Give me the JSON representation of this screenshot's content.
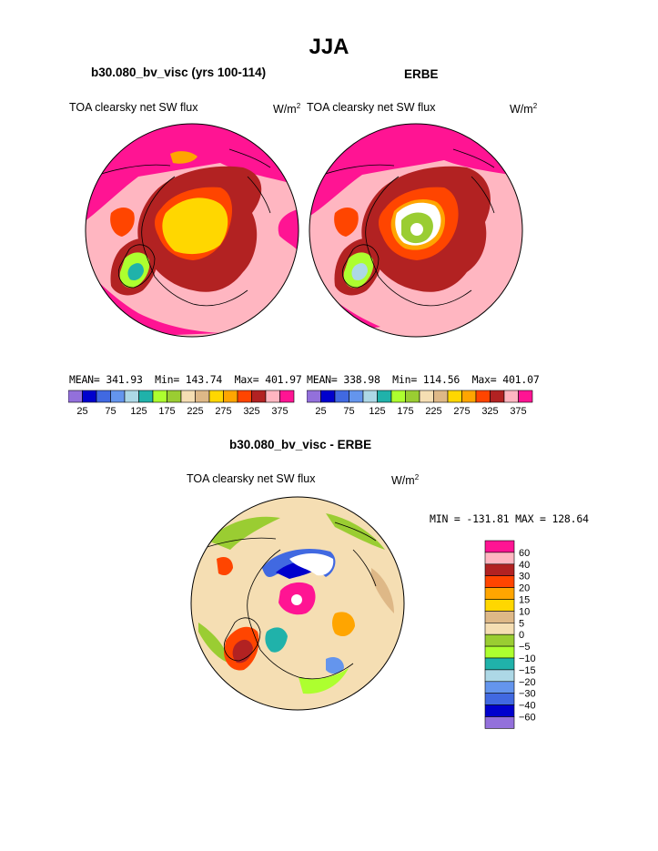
{
  "title": "JJA",
  "panels": [
    {
      "id": "model",
      "heading": "b30.080_bv_visc (yrs 100-114)",
      "variable": "TOA clearsky net SW flux",
      "units_base": "W/m",
      "units_exp": "2",
      "stats": {
        "mean_label": "MEAN=",
        "mean": "341.93",
        "min_label": "Min=",
        "min": "143.74",
        "max_label": "Max=",
        "max": "401.97"
      }
    },
    {
      "id": "obs",
      "heading": "ERBE",
      "variable": "TOA clearsky net SW flux",
      "units_base": "W/m",
      "units_exp": "2",
      "stats": {
        "mean_label": "MEAN=",
        "mean": "338.98",
        "min_label": "Min=",
        "min": "114.56",
        "max_label": "Max=",
        "max": "401.07"
      }
    }
  ],
  "colorbar_top": {
    "colors": [
      "#9370DB",
      "#0000CD",
      "#4169E1",
      "#6495ED",
      "#ADD8E6",
      "#20B2AA",
      "#ADFF2F",
      "#9ACD32",
      "#F5DEB3",
      "#DEB887",
      "#FFD700",
      "#FFA500",
      "#FF4500",
      "#B22222",
      "#FFB6C1",
      "#FF1493"
    ],
    "tick_labels": [
      "25",
      "75",
      "125",
      "175",
      "225",
      "275",
      "325",
      "375"
    ]
  },
  "difference": {
    "heading": "b30.080_bv_visc - ERBE",
    "variable": "TOA clearsky net SW flux",
    "units_base": "W/m",
    "units_exp": "2",
    "range_text": "MIN = -131.81 MAX = 128.64",
    "colorbar": {
      "colors": [
        "#FF1493",
        "#FFB6C1",
        "#B22222",
        "#FF4500",
        "#FFA500",
        "#FFD700",
        "#DEB887",
        "#F5DEB3",
        "#9ACD32",
        "#ADFF2F",
        "#20B2AA",
        "#ADD8E6",
        "#6495ED",
        "#4169E1",
        "#0000CD",
        "#9370DB"
      ],
      "tick_labels": [
        "60",
        "40",
        "30",
        "20",
        "15",
        "10",
        "5",
        "0",
        "-5",
        "-10",
        "-15",
        "-20",
        "-30",
        "-40",
        "-60"
      ]
    }
  }
}
